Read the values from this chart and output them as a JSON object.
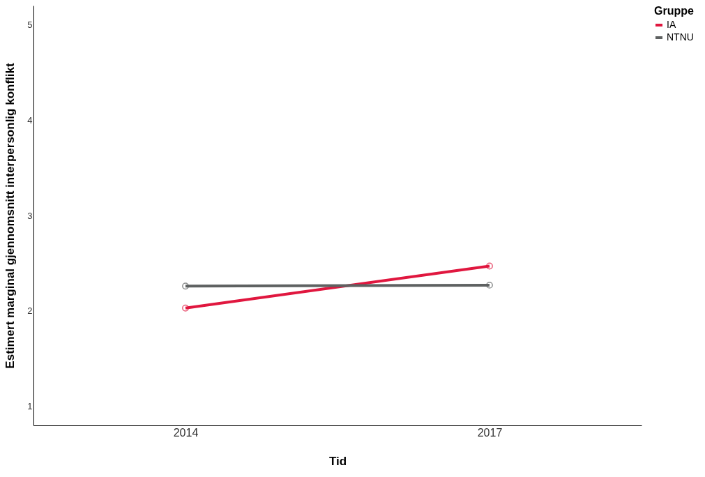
{
  "chart_data": {
    "type": "line",
    "xlabel": "Tid",
    "ylabel": "Estimert marginal gjennomsnitt interpersonlig konflikt",
    "legend_title": "Gruppe",
    "categories": [
      "2014",
      "2017"
    ],
    "series": [
      {
        "name": "IA",
        "color": "#e0173f",
        "values": [
          2.03,
          2.47
        ]
      },
      {
        "name": "NTNU",
        "color": "#5e6161",
        "values": [
          2.26,
          2.27
        ]
      }
    ],
    "ylim": [
      0.8,
      5.2
    ],
    "yticks": [
      1,
      2,
      3,
      4,
      5
    ],
    "grid": false,
    "legend": "top right",
    "marker": "circle",
    "line_style": "solid"
  }
}
